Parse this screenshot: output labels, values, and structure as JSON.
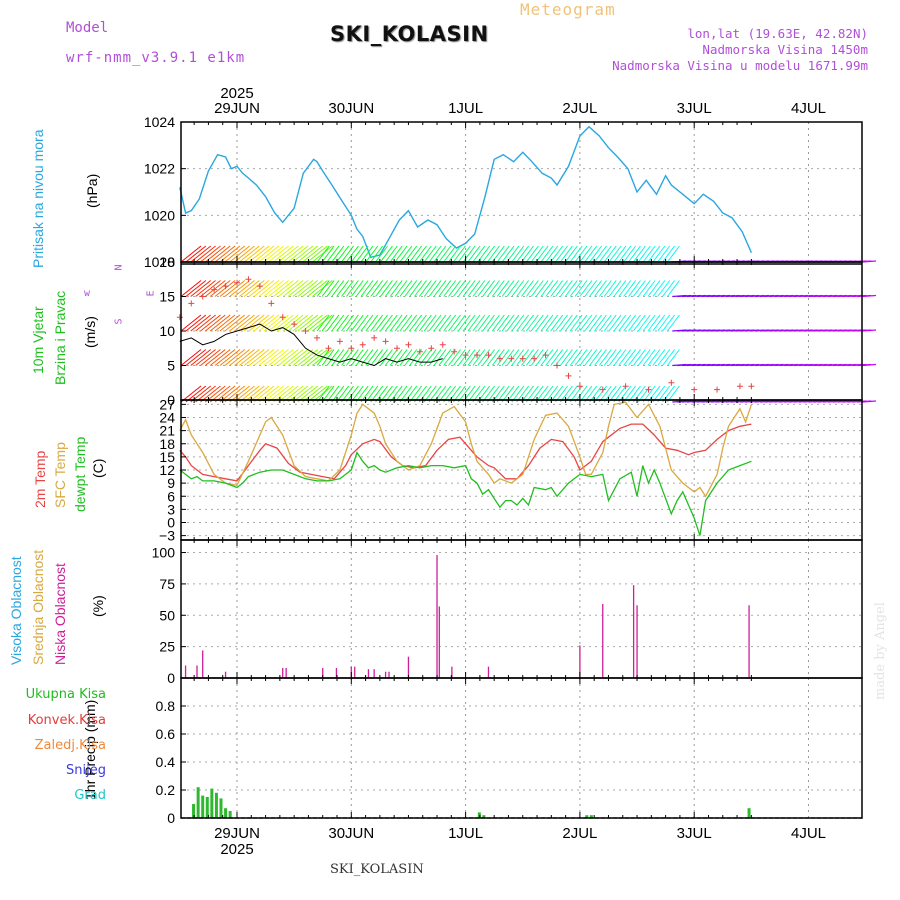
{
  "header": {
    "title": "SKI_KOLASIN",
    "meteogram": "Meteogram",
    "model_label": "Model",
    "model_name": "wrf-nmm_v3.9.1 e1km",
    "location": "lon,lat (19.63E, 42.82N)",
    "elevation": "Nadmorska Visina 1450m",
    "model_elevation": "Nadmorska Visina u modelu 1671.99m"
  },
  "footer": {
    "station": "SKI_KOLASIN",
    "credit": "made by Angel"
  },
  "dates": {
    "year": "2025",
    "labels": [
      "29JUN",
      "30JUN",
      "1JUL",
      "2JUL",
      "3JUL",
      "4JUL"
    ]
  },
  "panels": {
    "pressure": {
      "label": "Pritisak na nivou mora",
      "unit": "(hPa)"
    },
    "wind": {
      "label1": "10m Vjetar",
      "label2": "Brzina i Pravac",
      "unit": "(m/s)",
      "compass_top": "N",
      "compass_w": "w",
      "compass_e": "E",
      "compass_s": "S"
    },
    "temp": {
      "label1": "2m Temp",
      "label2": "SFC Temp",
      "label3": "dewpt Temp",
      "unit": "(C)"
    },
    "cloud": {
      "label1": "Visoka Oblacnost",
      "label2": "Srednja Oblacnost",
      "label3": "Niska Oblacnost",
      "unit": "(%)"
    },
    "precip": {
      "unit": "1hr Precip (mm)",
      "legend": [
        "Ukupna Kisa",
        "Konvek.Kisa",
        "Zaledj.Kisa",
        "Snijeg",
        "Grad"
      ]
    }
  },
  "colors": {
    "pressure": "#2aa7e0",
    "t2m": "#e84545",
    "sfc": "#d9a840",
    "dewpt": "#1fbf1f",
    "cloud_low": "#cc1f99",
    "precip": "#2fb82f",
    "gust": "#e84545",
    "legend": [
      "#22bb22",
      "#e63a3a",
      "#f08a3a",
      "#3a3ae0",
      "#22c5c5"
    ]
  },
  "chart_data": [
    {
      "type": "line",
      "x_unit": "days from 29JUN 00UTC",
      "ylim": [
        1018,
        1024
      ],
      "yticks": [
        1018,
        1020,
        1022,
        1024
      ],
      "x": [
        -0.5,
        -0.45,
        -0.4,
        -0.33,
        -0.25,
        -0.17,
        -0.1,
        -0.05,
        0,
        0.05,
        0.1,
        0.17,
        0.25,
        0.33,
        0.4,
        0.5,
        0.58,
        0.67,
        0.7,
        0.75,
        0.83,
        0.92,
        1,
        1.05,
        1.1,
        1.17,
        1.25,
        1.33,
        1.42,
        1.5,
        1.58,
        1.67,
        1.75,
        1.83,
        1.92,
        2,
        2.08,
        2.17,
        2.25,
        2.33,
        2.42,
        2.5,
        2.58,
        2.67,
        2.75,
        2.8,
        2.9,
        3,
        3.08,
        3.17,
        3.25,
        3.33,
        3.42,
        3.5,
        3.58,
        3.67,
        3.75,
        3.8,
        3.9,
        4,
        4.08,
        4.17,
        4.25,
        4.33,
        4.42,
        4.5
      ],
      "values": [
        1021.2,
        1020.1,
        1020.2,
        1020.7,
        1021.9,
        1022.6,
        1022.5,
        1022.0,
        1022.1,
        1021.8,
        1021.6,
        1021.3,
        1020.8,
        1020.1,
        1019.7,
        1020.3,
        1021.8,
        1022.4,
        1022.3,
        1021.9,
        1021.3,
        1020.6,
        1020.0,
        1019.4,
        1019.1,
        1018.2,
        1018.3,
        1019.0,
        1019.8,
        1020.2,
        1019.5,
        1019.8,
        1019.6,
        1019.0,
        1018.6,
        1018.8,
        1019.2,
        1020.8,
        1022.4,
        1022.6,
        1022.3,
        1022.7,
        1022.3,
        1021.8,
        1021.6,
        1021.3,
        1022.1,
        1023.4,
        1023.8,
        1023.4,
        1022.9,
        1022.5,
        1022.0,
        1021.0,
        1021.5,
        1020.9,
        1021.7,
        1021.3,
        1020.9,
        1020.5,
        1020.9,
        1020.6,
        1020.1,
        1019.9,
        1019.3,
        1018.4
      ]
    },
    {
      "type": "line",
      "x_unit": "days from 29JUN 00UTC",
      "ylim": [
        0,
        20
      ],
      "yticks": [
        0,
        5,
        10,
        15,
        20
      ],
      "series": [
        {
          "key": "speed",
          "x": [
            -0.5,
            -0.4,
            -0.3,
            -0.2,
            -0.1,
            0,
            0.1,
            0.2,
            0.3,
            0.4,
            0.5,
            0.6,
            0.7,
            0.8,
            0.9,
            1,
            1.1,
            1.2,
            1.3,
            1.4,
            1.5,
            1.6,
            1.7,
            1.8
          ],
          "values": [
            8.5,
            9,
            8,
            8.5,
            9.5,
            10,
            10.5,
            11,
            10,
            10.5,
            9.5,
            7.5,
            6.5,
            6,
            5.5,
            6,
            5.5,
            5,
            6,
            5.5,
            6,
            5.5,
            5.5,
            6
          ]
        },
        {
          "key": "gust",
          "x": [
            -0.5,
            -0.4,
            -0.3,
            -0.2,
            -0.1,
            0,
            0.1,
            0.2,
            0.3,
            0.4,
            0.5,
            0.6,
            0.7,
            0.8,
            0.9,
            1,
            1.1,
            1.2,
            1.3,
            1.4,
            1.5,
            1.6,
            1.7,
            1.8,
            1.9,
            2,
            2.1,
            2.2,
            2.3,
            2.4,
            2.5,
            2.6,
            2.7,
            2.8,
            2.9,
            3,
            3.2,
            3.4,
            3.6,
            3.8,
            4,
            4.2,
            4.4,
            4.5
          ],
          "values": [
            12,
            14,
            15,
            16,
            16.5,
            17,
            17.5,
            16.5,
            14,
            12,
            11,
            10,
            9,
            7.5,
            8.5,
            7.5,
            8,
            9,
            8.5,
            7.5,
            8,
            7,
            7.5,
            8,
            7,
            6.5,
            6.5,
            6.5,
            6,
            6,
            6,
            6,
            6.5,
            5,
            3.5,
            2,
            1.5,
            2,
            1.5,
            2.5,
            1.5,
            1.5,
            2,
            2
          ]
        }
      ]
    },
    {
      "type": "line",
      "x_unit": "days from 29JUN 00UTC",
      "ylim": [
        -4,
        28
      ],
      "yticks": [
        -3,
        0,
        3,
        6,
        9,
        12,
        15,
        18,
        21,
        24,
        27
      ],
      "series": [
        {
          "key": "t2m",
          "x": [
            -0.5,
            -0.45,
            -0.4,
            -0.3,
            -0.2,
            -0.1,
            0,
            0.1,
            0.2,
            0.25,
            0.35,
            0.45,
            0.55,
            0.65,
            0.75,
            0.85,
            0.95,
            1,
            1.1,
            1.2,
            1.25,
            1.35,
            1.45,
            1.55,
            1.65,
            1.75,
            1.85,
            1.95,
            2,
            2.1,
            2.2,
            2.25,
            2.35,
            2.45,
            2.55,
            2.65,
            2.75,
            2.85,
            2.95,
            3,
            3.1,
            3.2,
            3.25,
            3.35,
            3.45,
            3.55,
            3.65,
            3.75,
            3.85,
            3.95,
            4,
            4.1,
            4.2,
            4.3,
            4.4,
            4.5
          ],
          "values": [
            16.5,
            15,
            13,
            11,
            10.5,
            10,
            9.5,
            13,
            16.5,
            18,
            17,
            13.5,
            11.5,
            11,
            10.5,
            10,
            13,
            15.5,
            18,
            19,
            18.5,
            15,
            13,
            12.5,
            13,
            16.5,
            19,
            19.5,
            18,
            15,
            13,
            12.5,
            10,
            10,
            13,
            17,
            19,
            18.5,
            15,
            12,
            14,
            18.5,
            19.5,
            21.5,
            22.5,
            22.5,
            20,
            17,
            16.5,
            15.5,
            16,
            16.5,
            19,
            21,
            22,
            22.5
          ]
        },
        {
          "key": "sfc",
          "x": [
            -0.5,
            -0.45,
            -0.4,
            -0.3,
            -0.2,
            -0.1,
            0,
            0.1,
            0.2,
            0.25,
            0.3,
            0.4,
            0.5,
            0.6,
            0.7,
            0.8,
            0.9,
            1,
            1.05,
            1.1,
            1.2,
            1.25,
            1.3,
            1.4,
            1.5,
            1.6,
            1.7,
            1.8,
            1.9,
            2,
            2.05,
            2.1,
            2.2,
            2.25,
            2.3,
            2.4,
            2.5,
            2.6,
            2.7,
            2.8,
            2.9,
            3,
            3.05,
            3.1,
            3.2,
            3.25,
            3.3,
            3.4,
            3.5,
            3.6,
            3.7,
            3.8,
            3.9,
            4,
            4.05,
            4.1,
            4.2,
            4.25,
            4.3,
            4.4,
            4.45,
            4.5
          ],
          "values": [
            21,
            23.5,
            20,
            16,
            11,
            9,
            8.5,
            14,
            20,
            23,
            24,
            20,
            13,
            10.5,
            10,
            9.5,
            12,
            20,
            25,
            27,
            25,
            22,
            18,
            14,
            12,
            13,
            18,
            25,
            26.5,
            23,
            18,
            14,
            11,
            9,
            10,
            9,
            11,
            19,
            24.5,
            25,
            22,
            15,
            11,
            11,
            16,
            22,
            27,
            27.5,
            24,
            27,
            22,
            12,
            9,
            7,
            8,
            6,
            11,
            17,
            22,
            26,
            23,
            27
          ]
        },
        {
          "key": "dewpt",
          "x": [
            -0.5,
            -0.45,
            -0.4,
            -0.35,
            -0.3,
            -0.2,
            -0.1,
            0,
            0.05,
            0.1,
            0.2,
            0.3,
            0.4,
            0.5,
            0.6,
            0.7,
            0.8,
            0.9,
            1,
            1.05,
            1.1,
            1.15,
            1.2,
            1.25,
            1.3,
            1.4,
            1.5,
            1.6,
            1.7,
            1.8,
            1.9,
            2,
            2.05,
            2.1,
            2.15,
            2.2,
            2.3,
            2.35,
            2.4,
            2.45,
            2.5,
            2.55,
            2.6,
            2.7,
            2.75,
            2.8,
            2.9,
            3,
            3.1,
            3.2,
            3.25,
            3.35,
            3.45,
            3.5,
            3.55,
            3.6,
            3.65,
            3.7,
            3.8,
            3.85,
            3.9,
            4,
            4.05,
            4.1,
            4.2,
            4.3,
            4.4,
            4.5
          ],
          "values": [
            12,
            11,
            10,
            10.5,
            9.5,
            9.5,
            9,
            8,
            9,
            10.5,
            11.5,
            12,
            12,
            11,
            10,
            9.5,
            9.5,
            10,
            12,
            16,
            14,
            12.5,
            13,
            12,
            11.5,
            12.5,
            13,
            12.5,
            13,
            13,
            12.5,
            13,
            10,
            9,
            6.5,
            7.5,
            3.5,
            5,
            5,
            4,
            5.5,
            4,
            8,
            7.5,
            8,
            6,
            9,
            11,
            10.5,
            11,
            5,
            10,
            11.5,
            6,
            13,
            9,
            12,
            9,
            2,
            5,
            7,
            1,
            -3,
            5,
            9,
            12,
            13,
            14
          ]
        }
      ]
    },
    {
      "type": "bar",
      "x_unit": "days from 29JUN 00UTC",
      "ylim": [
        0,
        110
      ],
      "yticks": [
        0,
        25,
        50,
        75,
        100
      ],
      "series": [
        {
          "key": "niska",
          "x": [
            -0.45,
            -0.35,
            -0.3,
            -0.1,
            0.4,
            0.43,
            0.75,
            0.87,
            1,
            1.03,
            1.15,
            1.2,
            1.3,
            1.33,
            1.5,
            1.75,
            1.77,
            1.88,
            2.2,
            3.0,
            3.2,
            3.47,
            3.5,
            4.48
          ],
          "values": [
            10,
            10,
            22,
            5,
            8,
            8,
            8,
            8,
            9,
            9,
            7,
            7,
            5,
            5,
            17,
            98,
            57,
            9,
            9,
            26,
            59,
            74,
            58,
            58
          ]
        }
      ]
    },
    {
      "type": "bar",
      "x_unit": "days from 29JUN 00UTC",
      "ylim": [
        0,
        1.0
      ],
      "yticks": [
        0,
        0.2,
        0.4,
        0.6,
        0.8
      ],
      "series": [
        {
          "key": "ukupna",
          "x": [
            -0.38,
            -0.34,
            -0.3,
            -0.26,
            -0.22,
            -0.18,
            -0.14,
            -0.1,
            -0.06,
            2.12,
            2.16,
            3.06,
            3.1,
            4.48
          ],
          "values": [
            0.1,
            0.22,
            0.16,
            0.15,
            0.21,
            0.18,
            0.14,
            0.07,
            0.05,
            0.04,
            0.02,
            0.02,
            0.02,
            0.07
          ]
        }
      ]
    }
  ]
}
